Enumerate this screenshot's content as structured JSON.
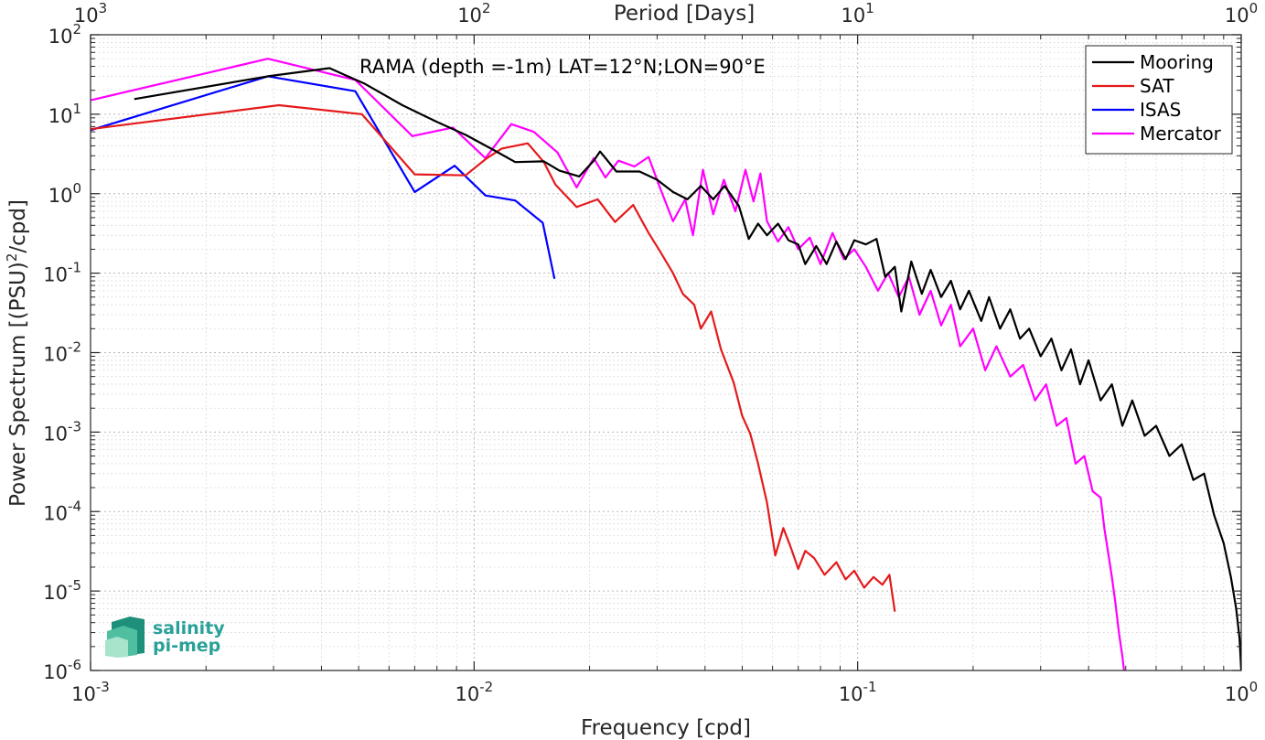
{
  "chart_data": {
    "type": "line",
    "title": "RAMA (depth =-1m) LAT=12°N;LON=90°E",
    "xlabel": "Frequency [cpd]",
    "ylabel": "Power Spectrum [(PSU)²/cpd]",
    "ylabel_parts": {
      "pre": "Power Spectrum [(PSU)",
      "sup": "2",
      "post": "/cpd]"
    },
    "top_xlabel": "Period [Days]",
    "x_scale": "log",
    "y_scale": "log",
    "xlim": [
      0.001,
      1
    ],
    "ylim": [
      1e-06,
      100
    ],
    "grid": true,
    "legend_position": "top-right",
    "x_ticks": [
      {
        "value": 0.001,
        "base": "10",
        "exp": "-3"
      },
      {
        "value": 0.01,
        "base": "10",
        "exp": "-2"
      },
      {
        "value": 0.1,
        "base": "10",
        "exp": "-1"
      },
      {
        "value": 1,
        "base": "10",
        "exp": "0"
      }
    ],
    "top_x_ticks": [
      {
        "value": 1000,
        "base": "10",
        "exp": "3"
      },
      {
        "value": 100,
        "base": "10",
        "exp": "2"
      },
      {
        "value": 10,
        "base": "10",
        "exp": "1"
      },
      {
        "value": 1,
        "base": "10",
        "exp": "0"
      }
    ],
    "y_ticks": [
      {
        "value": 100,
        "base": "10",
        "exp": "2"
      },
      {
        "value": 10,
        "base": "10",
        "exp": "1"
      },
      {
        "value": 1,
        "base": "10",
        "exp": "0"
      },
      {
        "value": 0.1,
        "base": "10",
        "exp": "-1"
      },
      {
        "value": 0.01,
        "base": "10",
        "exp": "-2"
      },
      {
        "value": 0.001,
        "base": "10",
        "exp": "-3"
      },
      {
        "value": 0.0001,
        "base": "10",
        "exp": "-4"
      },
      {
        "value": 1e-05,
        "base": "10",
        "exp": "-5"
      },
      {
        "value": 1e-06,
        "base": "10",
        "exp": "-6"
      }
    ],
    "series": [
      {
        "name": "Mooring",
        "color": "#000000",
        "points": [
          [
            0.0013,
            15.5
          ],
          [
            0.0029,
            30
          ],
          [
            0.0042,
            38
          ],
          [
            0.0052,
            24
          ],
          [
            0.0065,
            13
          ],
          [
            0.008,
            8
          ],
          [
            0.0095,
            5.5
          ],
          [
            0.0113,
            3.5
          ],
          [
            0.0128,
            2.5
          ],
          [
            0.0152,
            2.55
          ],
          [
            0.0167,
            1.95
          ],
          [
            0.0188,
            1.65
          ],
          [
            0.0205,
            2.6
          ],
          [
            0.0213,
            3.4
          ],
          [
            0.0235,
            1.9
          ],
          [
            0.027,
            1.9
          ],
          [
            0.03,
            1.5
          ],
          [
            0.033,
            1.05
          ],
          [
            0.036,
            0.85
          ],
          [
            0.039,
            1.25
          ],
          [
            0.042,
            0.85
          ],
          [
            0.045,
            1.25
          ],
          [
            0.049,
            0.7
          ],
          [
            0.052,
            0.27
          ],
          [
            0.055,
            0.42
          ],
          [
            0.058,
            0.3
          ],
          [
            0.062,
            0.42
          ],
          [
            0.066,
            0.26
          ],
          [
            0.07,
            0.23
          ],
          [
            0.073,
            0.13
          ],
          [
            0.078,
            0.22
          ],
          [
            0.083,
            0.13
          ],
          [
            0.088,
            0.25
          ],
          [
            0.093,
            0.15
          ],
          [
            0.098,
            0.26
          ],
          [
            0.105,
            0.23
          ],
          [
            0.112,
            0.27
          ],
          [
            0.118,
            0.09
          ],
          [
            0.125,
            0.12
          ],
          [
            0.13,
            0.033
          ],
          [
            0.138,
            0.14
          ],
          [
            0.147,
            0.055
          ],
          [
            0.155,
            0.11
          ],
          [
            0.165,
            0.05
          ],
          [
            0.175,
            0.08
          ],
          [
            0.185,
            0.035
          ],
          [
            0.195,
            0.06
          ],
          [
            0.21,
            0.025
          ],
          [
            0.22,
            0.05
          ],
          [
            0.235,
            0.02
          ],
          [
            0.25,
            0.035
          ],
          [
            0.265,
            0.015
          ],
          [
            0.28,
            0.02
          ],
          [
            0.3,
            0.009
          ],
          [
            0.32,
            0.015
          ],
          [
            0.34,
            0.006
          ],
          [
            0.36,
            0.011
          ],
          [
            0.38,
            0.004
          ],
          [
            0.4,
            0.008
          ],
          [
            0.43,
            0.0025
          ],
          [
            0.46,
            0.004
          ],
          [
            0.49,
            0.0012
          ],
          [
            0.52,
            0.0025
          ],
          [
            0.56,
            0.0009
          ],
          [
            0.6,
            0.0012
          ],
          [
            0.65,
            0.0005
          ],
          [
            0.7,
            0.0007
          ],
          [
            0.75,
            0.00025
          ],
          [
            0.8,
            0.0003
          ],
          [
            0.85,
            9e-05
          ],
          [
            0.9,
            4e-05
          ],
          [
            0.94,
            1.5e-05
          ],
          [
            0.97,
            6e-06
          ],
          [
            0.99,
            2.5e-06
          ],
          [
            1.0,
            1e-06
          ]
        ]
      },
      {
        "name": "SAT",
        "color": "#e41a1c",
        "points": [
          [
            0.001,
            6.5
          ],
          [
            0.0031,
            13
          ],
          [
            0.0051,
            10
          ],
          [
            0.007,
            1.75
          ],
          [
            0.0095,
            1.7
          ],
          [
            0.0108,
            2.8
          ],
          [
            0.0118,
            3.7
          ],
          [
            0.0138,
            4.3
          ],
          [
            0.0152,
            2.5
          ],
          [
            0.0163,
            1.3
          ],
          [
            0.0185,
            0.68
          ],
          [
            0.021,
            0.85
          ],
          [
            0.0233,
            0.44
          ],
          [
            0.026,
            0.72
          ],
          [
            0.0285,
            0.32
          ],
          [
            0.0305,
            0.19
          ],
          [
            0.033,
            0.1
          ],
          [
            0.035,
            0.055
          ],
          [
            0.0375,
            0.04
          ],
          [
            0.039,
            0.02
          ],
          [
            0.0415,
            0.033
          ],
          [
            0.044,
            0.011
          ],
          [
            0.0475,
            0.0042
          ],
          [
            0.05,
            0.0016
          ],
          [
            0.0525,
            0.00095
          ],
          [
            0.055,
            0.0004
          ],
          [
            0.058,
            0.00013
          ],
          [
            0.061,
            2.8e-05
          ],
          [
            0.064,
            6.2e-05
          ],
          [
            0.067,
            3.5e-05
          ],
          [
            0.07,
            1.9e-05
          ],
          [
            0.073,
            3.2e-05
          ],
          [
            0.077,
            2.6e-05
          ],
          [
            0.082,
            1.6e-05
          ],
          [
            0.088,
            2.3e-05
          ],
          [
            0.093,
            1.4e-05
          ],
          [
            0.098,
            1.8e-05
          ],
          [
            0.104,
            1.1e-05
          ],
          [
            0.11,
            1.5e-05
          ],
          [
            0.116,
            1.2e-05
          ],
          [
            0.121,
            1.6e-05
          ],
          [
            0.125,
            5.5e-06
          ]
        ]
      },
      {
        "name": "ISAS",
        "color": "#0000ff",
        "points": [
          [
            0.001,
            6.3
          ],
          [
            0.0029,
            30
          ],
          [
            0.0049,
            19.5
          ],
          [
            0.007,
            1.05
          ],
          [
            0.0089,
            2.25
          ],
          [
            0.0107,
            0.95
          ],
          [
            0.0128,
            0.82
          ],
          [
            0.0151,
            0.43
          ],
          [
            0.0162,
            0.085
          ]
        ]
      },
      {
        "name": "Mercator",
        "color": "#ff00ff",
        "points": [
          [
            0.001,
            15
          ],
          [
            0.0029,
            50
          ],
          [
            0.0049,
            27
          ],
          [
            0.0069,
            5.3
          ],
          [
            0.0088,
            6.8
          ],
          [
            0.0107,
            2.8
          ],
          [
            0.0125,
            7.5
          ],
          [
            0.0143,
            6
          ],
          [
            0.0165,
            3.3
          ],
          [
            0.0185,
            1.2
          ],
          [
            0.0205,
            2.8
          ],
          [
            0.022,
            1.6
          ],
          [
            0.0238,
            2.6
          ],
          [
            0.0262,
            2.2
          ],
          [
            0.0285,
            2.9
          ],
          [
            0.0305,
            1.2
          ],
          [
            0.033,
            0.45
          ],
          [
            0.0355,
            0.85
          ],
          [
            0.0372,
            0.3
          ],
          [
            0.0395,
            2
          ],
          [
            0.042,
            0.55
          ],
          [
            0.0448,
            1.5
          ],
          [
            0.048,
            0.6
          ],
          [
            0.051,
            2
          ],
          [
            0.0535,
            0.8
          ],
          [
            0.0558,
            1.8
          ],
          [
            0.058,
            0.45
          ],
          [
            0.062,
            0.25
          ],
          [
            0.066,
            0.38
          ],
          [
            0.07,
            0.2
          ],
          [
            0.075,
            0.28
          ],
          [
            0.08,
            0.13
          ],
          [
            0.086,
            0.32
          ],
          [
            0.092,
            0.15
          ],
          [
            0.098,
            0.2
          ],
          [
            0.105,
            0.12
          ],
          [
            0.113,
            0.06
          ],
          [
            0.12,
            0.1
          ],
          [
            0.128,
            0.05
          ],
          [
            0.136,
            0.09
          ],
          [
            0.145,
            0.03
          ],
          [
            0.155,
            0.06
          ],
          [
            0.165,
            0.022
          ],
          [
            0.175,
            0.04
          ],
          [
            0.185,
            0.012
          ],
          [
            0.2,
            0.02
          ],
          [
            0.215,
            0.006
          ],
          [
            0.23,
            0.012
          ],
          [
            0.25,
            0.005
          ],
          [
            0.27,
            0.007
          ],
          [
            0.29,
            0.0025
          ],
          [
            0.31,
            0.004
          ],
          [
            0.33,
            0.0012
          ],
          [
            0.35,
            0.0015
          ],
          [
            0.37,
            0.0004
          ],
          [
            0.39,
            0.0005
          ],
          [
            0.41,
            0.00018
          ],
          [
            0.43,
            0.00015
          ],
          [
            0.44,
            6e-05
          ],
          [
            0.45,
            3e-05
          ],
          [
            0.46,
            1.5e-05
          ],
          [
            0.47,
            7e-06
          ],
          [
            0.48,
            3e-06
          ],
          [
            0.49,
            1.5e-06
          ],
          [
            0.495,
            1e-06
          ]
        ]
      }
    ]
  },
  "logo": {
    "line1": "salinity",
    "line2": "pi-mep"
  }
}
